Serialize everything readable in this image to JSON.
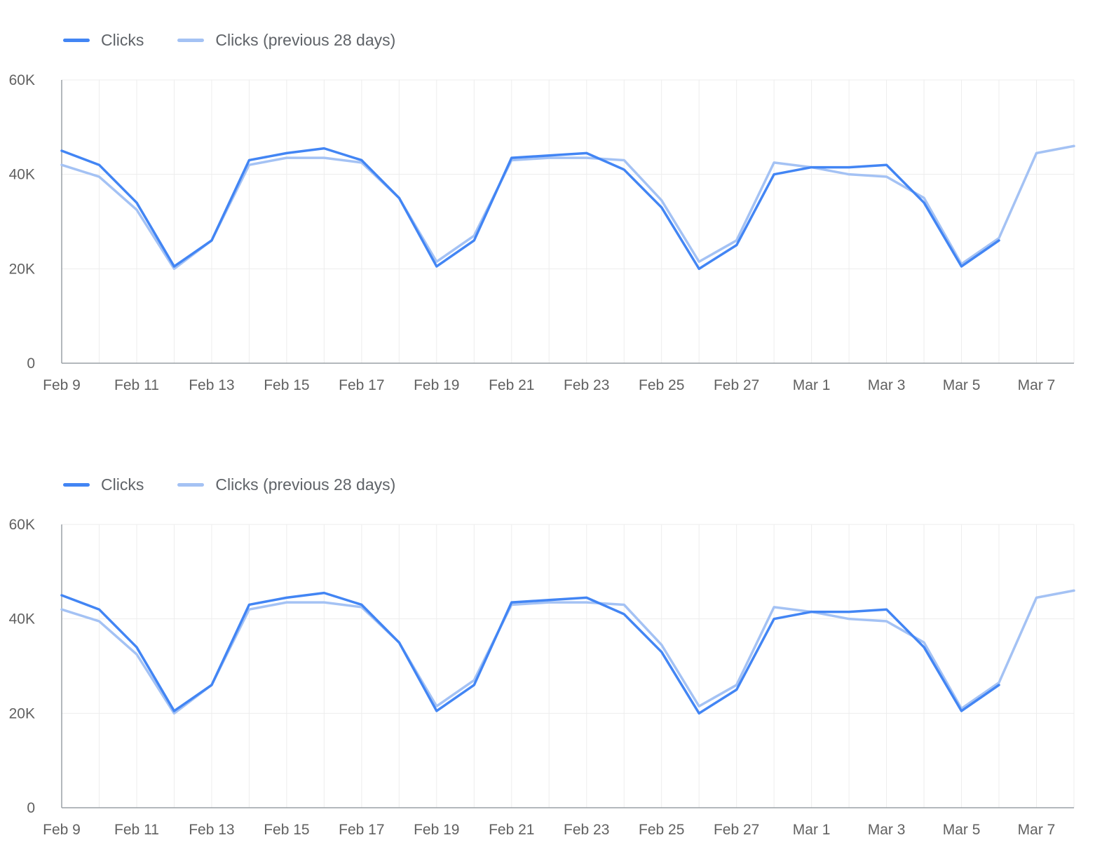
{
  "page": {
    "background": "#ffffff",
    "axis_text_color": "#616161",
    "legend_text_color": "#5f6368",
    "gridline_color": "#ededed",
    "axis_line_color": "#9aa0a6"
  },
  "chart_data": [
    {
      "type": "line",
      "title": "",
      "legend_position": "top-left",
      "grid": true,
      "x_tick_interval": 2,
      "x": [
        "Feb 9",
        "Feb 10",
        "Feb 11",
        "Feb 12",
        "Feb 13",
        "Feb 14",
        "Feb 15",
        "Feb 16",
        "Feb 17",
        "Feb 18",
        "Feb 19",
        "Feb 20",
        "Feb 21",
        "Feb 22",
        "Feb 23",
        "Feb 24",
        "Feb 25",
        "Feb 26",
        "Feb 27",
        "Feb 28",
        "Mar 1",
        "Mar 2",
        "Mar 3",
        "Mar 4",
        "Mar 5",
        "Mar 6",
        "Mar 7",
        "Mar 8"
      ],
      "ylim": [
        0,
        60000
      ],
      "yticks": [
        {
          "value": 0,
          "label": "0"
        },
        {
          "value": 20000,
          "label": "20K"
        },
        {
          "value": 40000,
          "label": "40K"
        },
        {
          "value": 60000,
          "label": "60K"
        }
      ],
      "series": [
        {
          "name": "Clicks (previous 28 days)",
          "color": "#a4c2f4",
          "values": [
            42000,
            39500,
            32500,
            20000,
            26000,
            42000,
            43500,
            43500,
            42500,
            35000,
            21500,
            27000,
            43000,
            43500,
            43500,
            43000,
            34500,
            21500,
            26000,
            42500,
            41500,
            40000,
            39500,
            35000,
            21000,
            26500,
            44500,
            46000
          ]
        },
        {
          "name": "Clicks",
          "color": "#4285f4",
          "values": [
            45000,
            42000,
            34000,
            20500,
            26000,
            43000,
            44500,
            45500,
            43000,
            35000,
            20500,
            26000,
            43500,
            44000,
            44500,
            41000,
            33000,
            20000,
            25000,
            40000,
            41500,
            41500,
            42000,
            34000,
            20500,
            26000,
            null,
            null
          ]
        }
      ],
      "legend_order": [
        "Clicks",
        "Clicks (previous 28 days)"
      ]
    },
    {
      "type": "line",
      "title": "",
      "legend_position": "top-left",
      "grid": true,
      "x_tick_interval": 2,
      "x": [
        "Feb 9",
        "Feb 10",
        "Feb 11",
        "Feb 12",
        "Feb 13",
        "Feb 14",
        "Feb 15",
        "Feb 16",
        "Feb 17",
        "Feb 18",
        "Feb 19",
        "Feb 20",
        "Feb 21",
        "Feb 22",
        "Feb 23",
        "Feb 24",
        "Feb 25",
        "Feb 26",
        "Feb 27",
        "Feb 28",
        "Mar 1",
        "Mar 2",
        "Mar 3",
        "Mar 4",
        "Mar 5",
        "Mar 6",
        "Mar 7",
        "Mar 8"
      ],
      "ylim": [
        0,
        60000
      ],
      "yticks": [
        {
          "value": 0,
          "label": "0"
        },
        {
          "value": 20000,
          "label": "20K"
        },
        {
          "value": 40000,
          "label": "40K"
        },
        {
          "value": 60000,
          "label": "60K"
        }
      ],
      "series": [
        {
          "name": "Clicks (previous 28 days)",
          "color": "#a4c2f4",
          "values": [
            42000,
            39500,
            32500,
            20000,
            26000,
            42000,
            43500,
            43500,
            42500,
            35000,
            21500,
            27000,
            43000,
            43500,
            43500,
            43000,
            34500,
            21500,
            26000,
            42500,
            41500,
            40000,
            39500,
            35000,
            21000,
            26500,
            44500,
            46000
          ]
        },
        {
          "name": "Clicks",
          "color": "#4285f4",
          "values": [
            45000,
            42000,
            34000,
            20500,
            26000,
            43000,
            44500,
            45500,
            43000,
            35000,
            20500,
            26000,
            43500,
            44000,
            44500,
            41000,
            33000,
            20000,
            25000,
            40000,
            41500,
            41500,
            42000,
            34000,
            20500,
            26000,
            null,
            null
          ]
        }
      ],
      "legend_order": [
        "Clicks",
        "Clicks (previous 28 days)"
      ]
    }
  ]
}
